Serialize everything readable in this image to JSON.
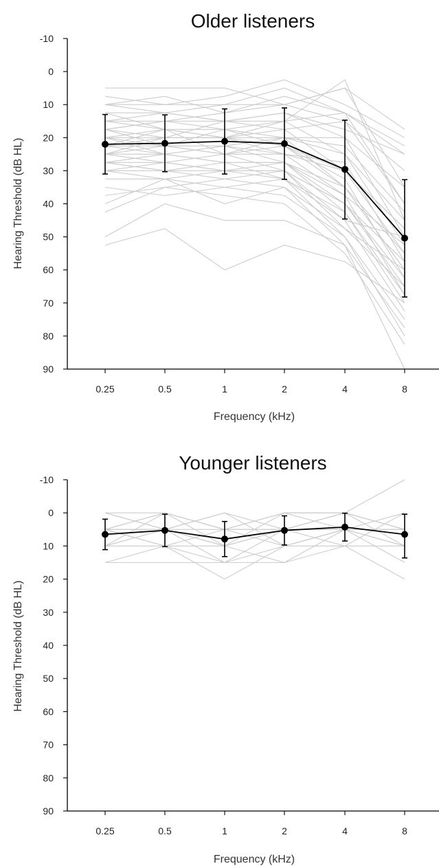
{
  "chart_data": [
    {
      "type": "line",
      "title": "Older listeners",
      "xlabel": "Frequency (kHz)",
      "ylabel": "Hearing Threshold (dB HL)",
      "categories": [
        "0.25",
        "0.5",
        "1",
        "2",
        "4",
        "8"
      ],
      "y_ticks": [
        "-10",
        "0",
        "10",
        "20",
        "30",
        "40",
        "50",
        "60",
        "70",
        "80",
        "90"
      ],
      "ylim": [
        -10,
        90
      ],
      "y_inverted": true,
      "grid": false,
      "individual_color": "#cccccc",
      "mean_color": "#000000",
      "mean_series": {
        "values": [
          22,
          21.7,
          21.1,
          21.8,
          29.6,
          50.4
        ],
        "error_low": [
          13,
          13.1,
          11.3,
          11,
          14.7,
          32.7
        ],
        "error_high": [
          31,
          30.3,
          31,
          32.6,
          44.6,
          68.2
        ]
      },
      "individual_series": [
        [
          5,
          5,
          5,
          10,
          5,
          17.5
        ],
        [
          7.5,
          10,
          7.5,
          2.5,
          10,
          20
        ],
        [
          10,
          10,
          10,
          5,
          12.5,
          25
        ],
        [
          10,
          12.5,
          10,
          10,
          15,
          30
        ],
        [
          12.5,
          12.5,
          15,
          12.5,
          20,
          35
        ],
        [
          15,
          15,
          15,
          15,
          12.5,
          40
        ],
        [
          15,
          17.5,
          17.5,
          15,
          25,
          45
        ],
        [
          17.5,
          15,
          17.5,
          20,
          20,
          50
        ],
        [
          17.5,
          20,
          15,
          17.5,
          30,
          47.5
        ],
        [
          20,
          17.5,
          20,
          20,
          25,
          52.5
        ],
        [
          20,
          20,
          20,
          22.5,
          30,
          55
        ],
        [
          20,
          22.5,
          22.5,
          20,
          35,
          60
        ],
        [
          22.5,
          20,
          20,
          25,
          27.5,
          57.5
        ],
        [
          22.5,
          22.5,
          25,
          22.5,
          32.5,
          62.5
        ],
        [
          22.5,
          25,
          22.5,
          27.5,
          40,
          65
        ],
        [
          25,
          22.5,
          25,
          25,
          37.5,
          67.5
        ],
        [
          25,
          25,
          27.5,
          27.5,
          42.5,
          70
        ],
        [
          25,
          27.5,
          25,
          30,
          45,
          72.5
        ],
        [
          27.5,
          25,
          27.5,
          27.5,
          35,
          55
        ],
        [
          27.5,
          27.5,
          30,
          30,
          47.5,
          60
        ],
        [
          27.5,
          30,
          27.5,
          32.5,
          50,
          75
        ],
        [
          30,
          27.5,
          30,
          30,
          40,
          62.5
        ],
        [
          30,
          30,
          32.5,
          35,
          52.5,
          77.5
        ],
        [
          32.5,
          32.5,
          30,
          32.5,
          45,
          50
        ],
        [
          35,
          37.5,
          35,
          37.5,
          50,
          80
        ],
        [
          37.5,
          35,
          37.5,
          40,
          55,
          82.5
        ],
        [
          40,
          32.5,
          40,
          35,
          47.5,
          65
        ],
        [
          42.5,
          35,
          32.5,
          30,
          40,
          57.5
        ],
        [
          50,
          40,
          45,
          45,
          52.5,
          90
        ],
        [
          52.5,
          47.5,
          60,
          52.5,
          57.5,
          70
        ],
        [
          25,
          20,
          20,
          15,
          2.5,
          45
        ],
        [
          17.5,
          15,
          12.5,
          10,
          5,
          35
        ],
        [
          12.5,
          17.5,
          20,
          17.5,
          15,
          40
        ],
        [
          20,
          25,
          22.5,
          25,
          30,
          47.5
        ],
        [
          15,
          12.5,
          15,
          12.5,
          17.5,
          25
        ],
        [
          30,
          32.5,
          35,
          32.5,
          42.5,
          67.5
        ],
        [
          17.5,
          22.5,
          17.5,
          22.5,
          35,
          60
        ],
        [
          22.5,
          17.5,
          25,
          20,
          22.5,
          42.5
        ],
        [
          27.5,
          30,
          30,
          27.5,
          37.5,
          52.5
        ],
        [
          10,
          7.5,
          12.5,
          7.5,
          12.5,
          22.5
        ]
      ]
    },
    {
      "type": "line",
      "title": "Younger listeners",
      "xlabel": "Frequency (kHz)",
      "ylabel": "Hearing Threshold (dB HL)",
      "categories": [
        "0.25",
        "0.5",
        "1",
        "2",
        "4",
        "8"
      ],
      "y_ticks": [
        "-10",
        "0",
        "10",
        "20",
        "30",
        "40",
        "50",
        "60",
        "70",
        "80",
        "90"
      ],
      "ylim": [
        -10,
        90
      ],
      "y_inverted": true,
      "grid": false,
      "individual_color": "#cccccc",
      "mean_color": "#000000",
      "mean_series": {
        "values": [
          6.5,
          5.3,
          7.9,
          5.3,
          4.3,
          6.5
        ],
        "error_low": [
          1.9,
          0.4,
          2.6,
          0.9,
          0.1,
          0.4
        ],
        "error_high": [
          11.1,
          10.2,
          13.2,
          9.7,
          8.5,
          13.6
        ]
      },
      "individual_series": [
        [
          0,
          0,
          5,
          0,
          0,
          -10
        ],
        [
          0,
          5,
          0,
          5,
          0,
          5
        ],
        [
          5,
          0,
          5,
          10,
          5,
          10
        ],
        [
          5,
          5,
          10,
          5,
          0,
          5
        ],
        [
          5,
          10,
          5,
          5,
          10,
          0
        ],
        [
          10,
          5,
          15,
          5,
          5,
          10
        ],
        [
          10,
          10,
          10,
          15,
          5,
          15
        ],
        [
          15,
          10,
          20,
          10,
          10,
          20
        ],
        [
          15,
          15,
          15,
          10,
          5,
          10
        ],
        [
          5,
          0,
          5,
          0,
          0,
          5
        ],
        [
          10,
          5,
          5,
          5,
          5,
          5
        ],
        [
          0,
          5,
          10,
          5,
          0,
          10
        ],
        [
          5,
          5,
          0,
          10,
          5,
          0
        ],
        [
          10,
          0,
          10,
          0,
          5,
          5
        ],
        [
          5,
          10,
          15,
          15,
          10,
          10
        ]
      ]
    }
  ]
}
